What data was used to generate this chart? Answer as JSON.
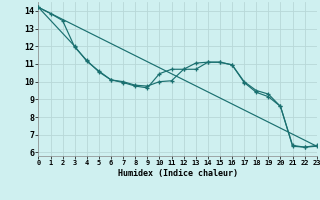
{
  "xlabel": "Humidex (Indice chaleur)",
  "background_color": "#cff0f0",
  "grid_color": "#b8d8d8",
  "line_color": "#1a7070",
  "xlim": [
    0,
    23
  ],
  "ylim": [
    5.8,
    14.5
  ],
  "xticks": [
    0,
    1,
    2,
    3,
    4,
    5,
    6,
    7,
    8,
    9,
    10,
    11,
    12,
    13,
    14,
    15,
    16,
    17,
    18,
    19,
    20,
    21,
    22,
    23
  ],
  "yticks": [
    6,
    7,
    8,
    9,
    10,
    11,
    12,
    13,
    14
  ],
  "line1_x": [
    0,
    1,
    2,
    3,
    4,
    5,
    6,
    7,
    8,
    9,
    10,
    11,
    12,
    13,
    14,
    15,
    16,
    17,
    18,
    19,
    20,
    21,
    22,
    23
  ],
  "line1_y": [
    14.2,
    13.85,
    13.45,
    11.95,
    11.2,
    10.55,
    10.1,
    10.0,
    9.8,
    9.75,
    10.0,
    10.05,
    10.7,
    10.7,
    11.1,
    11.1,
    10.95,
    10.0,
    9.5,
    9.3,
    8.6,
    6.4,
    6.3,
    6.4
  ],
  "line2_x": [
    0,
    3,
    4,
    5,
    6,
    7,
    8,
    9,
    10,
    11,
    12,
    13,
    14,
    15,
    16,
    17,
    18,
    19,
    20,
    21,
    22,
    23
  ],
  "line2_y": [
    14.2,
    12.0,
    11.15,
    10.6,
    10.1,
    9.95,
    9.75,
    9.65,
    10.45,
    10.7,
    10.7,
    11.05,
    11.1,
    11.1,
    10.95,
    9.95,
    9.4,
    9.15,
    8.6,
    6.35,
    6.3,
    6.35
  ],
  "line3_x": [
    0,
    23
  ],
  "line3_y": [
    14.2,
    6.35
  ],
  "marker_size": 3.5,
  "lw": 0.85
}
